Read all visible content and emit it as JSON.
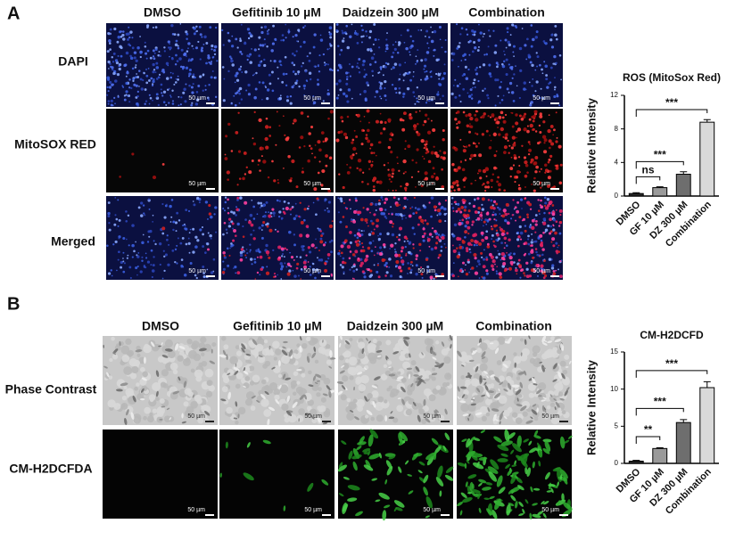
{
  "panel_a": {
    "label": "A",
    "columns": [
      "DMSO",
      "Gefitinib 10 µM",
      "Daidzein 300 µM",
      "Combination"
    ],
    "rows": [
      "DAPI",
      "MitoSOX RED",
      "Merged"
    ],
    "scale_bar": "50 µm"
  },
  "panel_b": {
    "label": "B",
    "columns": [
      "DMSO",
      "Gefitinib 10 µM",
      "Daidzein 300 µM",
      "Combination"
    ],
    "rows": [
      "Phase Contrast",
      "CM-H2DCFDA"
    ],
    "scale_bar": "50 µm"
  },
  "chart_data": [
    {
      "type": "bar",
      "title": "ROS (MitoSox Red)",
      "y_label": "Relative Intensity",
      "categories": [
        "DMSO",
        "GF 10 µM",
        "DZ 300 µM",
        "Combination"
      ],
      "values": [
        0.3,
        1.0,
        2.6,
        8.8
      ],
      "errors": [
        0.1,
        0.1,
        0.3,
        0.3
      ],
      "colors": [
        "#2a2a2a",
        "#9a9a9a",
        "#6e6e6e",
        "#d9d9d9"
      ],
      "ylim": [
        0,
        12
      ],
      "yticks": [
        0,
        4,
        8,
        12
      ],
      "comparisons": [
        {
          "pair": [
            0,
            1
          ],
          "label": "ns"
        },
        {
          "pair": [
            0,
            2
          ],
          "label": "***"
        },
        {
          "pair": [
            0,
            3
          ],
          "label": "***"
        }
      ]
    },
    {
      "type": "bar",
      "title": "CM-H2DCFD",
      "y_label": "Relative Intensity",
      "categories": [
        "DMSO",
        "GF 10 µM",
        "DZ 300 µM",
        "Combination"
      ],
      "values": [
        0.3,
        2.0,
        5.5,
        10.2
      ],
      "errors": [
        0.1,
        0.1,
        0.4,
        0.8
      ],
      "colors": [
        "#2a2a2a",
        "#9a9a9a",
        "#6e6e6e",
        "#d9d9d9"
      ],
      "ylim": [
        0,
        15
      ],
      "yticks": [
        0,
        5,
        10,
        15
      ],
      "comparisons": [
        {
          "pair": [
            0,
            1
          ],
          "label": "**"
        },
        {
          "pair": [
            0,
            2
          ],
          "label": "***"
        },
        {
          "pair": [
            0,
            3
          ],
          "label": "***"
        }
      ]
    }
  ]
}
